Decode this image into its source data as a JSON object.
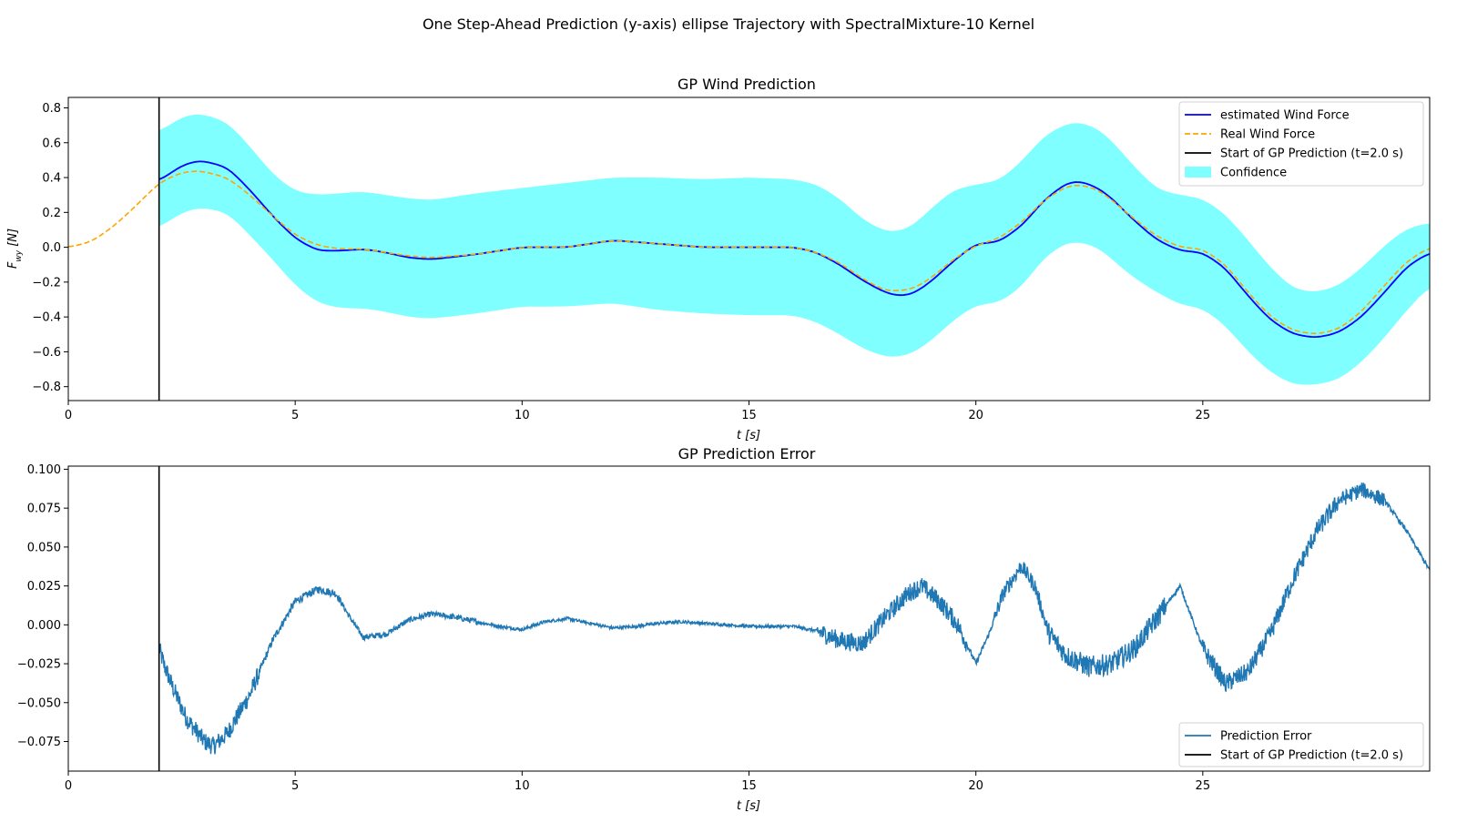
{
  "suptitle": "One Step-Ahead Prediction (y-axis) ellipse Trajectory with SpectralMixture-10 Kernel",
  "colors": {
    "estimated": "#0000ff",
    "real": "#ffa500",
    "start_line": "#000000",
    "confidence": "#7fffff",
    "error": "#1f77b4"
  },
  "chart_data": [
    {
      "type": "line",
      "title": "GP Wind Prediction",
      "xlabel": "t [s]",
      "ylabel": "F_wy [N]",
      "xlim": [
        0,
        30
      ],
      "ylim": [
        -0.88,
        0.86
      ],
      "xticks": [
        0,
        5,
        10,
        15,
        20,
        25
      ],
      "xtick_labels": [
        "0",
        "5",
        "10",
        "15",
        "20",
        "25"
      ],
      "yticks": [
        -0.8,
        -0.6,
        -0.4,
        -0.2,
        0.0,
        0.2,
        0.4,
        0.6,
        0.8
      ],
      "ytick_labels": [
        "−0.8",
        "−0.6",
        "−0.4",
        "−0.2",
        "0.0",
        "0.2",
        "0.4",
        "0.6",
        "0.8"
      ],
      "grid": false,
      "legend_position": "upper right",
      "legend": [
        "estimated Wind Force",
        "Real Wind Force",
        "Start of GP Prediction (t=2.0 s)",
        "Confidence"
      ],
      "vline_x": 2.0,
      "series": [
        {
          "name": "estimated Wind Force",
          "style": "solid",
          "x": [
            2.0,
            2.5,
            2.9,
            3.5,
            4.0,
            4.5,
            5.0,
            5.5,
            6.0,
            6.5,
            7.0,
            7.5,
            8.0,
            9.0,
            10.0,
            11.0,
            12.0,
            13.0,
            14.0,
            15.0,
            16.0,
            16.5,
            17.0,
            17.5,
            18.0,
            18.3,
            18.6,
            19.0,
            19.5,
            20.0,
            20.5,
            21.0,
            21.5,
            22.0,
            22.3,
            22.7,
            23.0,
            23.5,
            24.0,
            24.5,
            25.0,
            25.5,
            26.0,
            26.5,
            27.0,
            27.5,
            28.0,
            28.5,
            29.0,
            29.5,
            30.0
          ],
          "y": [
            0.38,
            0.47,
            0.5,
            0.46,
            0.33,
            0.18,
            0.05,
            -0.02,
            -0.02,
            -0.01,
            -0.03,
            -0.06,
            -0.07,
            -0.04,
            0.0,
            0.0,
            0.04,
            0.02,
            0.0,
            0.0,
            0.0,
            -0.03,
            -0.1,
            -0.19,
            -0.26,
            -0.28,
            -0.27,
            -0.2,
            -0.08,
            0.02,
            0.03,
            0.12,
            0.27,
            0.37,
            0.38,
            0.34,
            0.28,
            0.15,
            0.04,
            -0.02,
            -0.03,
            -0.12,
            -0.28,
            -0.42,
            -0.5,
            -0.52,
            -0.49,
            -0.4,
            -0.26,
            -0.11,
            -0.03
          ]
        },
        {
          "name": "Real Wind Force",
          "style": "dashed",
          "x": [
            0.0,
            0.5,
            1.0,
            1.5,
            2.0,
            2.5,
            2.9,
            3.5,
            4.0,
            4.5,
            5.0,
            5.5,
            6.0,
            6.5,
            7.0,
            7.5,
            8.0,
            9.0,
            10.0,
            11.0,
            12.0,
            13.0,
            14.0,
            15.0,
            16.0,
            16.5,
            17.0,
            17.5,
            18.0,
            18.3,
            18.6,
            19.0,
            19.5,
            20.0,
            20.5,
            21.0,
            21.5,
            22.0,
            22.3,
            22.7,
            23.0,
            23.5,
            24.0,
            24.5,
            25.0,
            25.5,
            26.0,
            26.5,
            27.0,
            27.5,
            28.0,
            28.5,
            29.0,
            29.5,
            30.0
          ],
          "y": [
            0.0,
            0.03,
            0.12,
            0.24,
            0.37,
            0.43,
            0.44,
            0.4,
            0.3,
            0.18,
            0.07,
            0.01,
            -0.01,
            -0.01,
            -0.03,
            -0.05,
            -0.06,
            -0.04,
            0.0,
            0.0,
            0.04,
            0.02,
            0.0,
            0.0,
            0.0,
            -0.03,
            -0.09,
            -0.18,
            -0.25,
            -0.25,
            -0.24,
            -0.18,
            -0.07,
            0.01,
            0.05,
            0.14,
            0.27,
            0.35,
            0.36,
            0.33,
            0.27,
            0.16,
            0.06,
            0.0,
            -0.01,
            -0.1,
            -0.26,
            -0.4,
            -0.48,
            -0.5,
            -0.47,
            -0.37,
            -0.22,
            -0.08,
            0.0
          ]
        }
      ],
      "confidence": {
        "name": "Confidence",
        "x": [
          2.0,
          2.5,
          2.9,
          3.5,
          4.0,
          4.5,
          5.0,
          5.5,
          6.0,
          6.5,
          7.0,
          7.5,
          8.0,
          9.0,
          10.0,
          11.0,
          12.0,
          13.0,
          14.0,
          15.0,
          16.0,
          16.5,
          17.0,
          17.5,
          18.0,
          18.3,
          18.6,
          19.0,
          19.5,
          20.0,
          20.5,
          21.0,
          21.5,
          22.0,
          22.3,
          22.7,
          23.0,
          23.5,
          24.0,
          24.5,
          25.0,
          25.5,
          26.0,
          26.5,
          27.0,
          27.5,
          28.0,
          28.5,
          29.0,
          29.5,
          30.0
        ],
        "upper": [
          0.66,
          0.75,
          0.77,
          0.72,
          0.58,
          0.42,
          0.32,
          0.3,
          0.31,
          0.32,
          0.3,
          0.28,
          0.27,
          0.31,
          0.34,
          0.37,
          0.4,
          0.4,
          0.39,
          0.4,
          0.39,
          0.36,
          0.28,
          0.16,
          0.09,
          0.09,
          0.12,
          0.22,
          0.33,
          0.36,
          0.38,
          0.49,
          0.64,
          0.71,
          0.72,
          0.68,
          0.61,
          0.46,
          0.33,
          0.3,
          0.28,
          0.19,
          0.04,
          -0.12,
          -0.24,
          -0.26,
          -0.22,
          -0.12,
          0.01,
          0.11,
          0.14
        ],
        "lower": [
          0.11,
          0.2,
          0.23,
          0.2,
          0.07,
          -0.07,
          -0.22,
          -0.32,
          -0.35,
          -0.35,
          -0.37,
          -0.4,
          -0.41,
          -0.38,
          -0.34,
          -0.34,
          -0.32,
          -0.36,
          -0.38,
          -0.39,
          -0.39,
          -0.43,
          -0.5,
          -0.58,
          -0.63,
          -0.63,
          -0.61,
          -0.54,
          -0.42,
          -0.33,
          -0.32,
          -0.23,
          -0.06,
          0.03,
          0.03,
          0.0,
          -0.07,
          -0.18,
          -0.26,
          -0.33,
          -0.35,
          -0.45,
          -0.6,
          -0.72,
          -0.79,
          -0.79,
          -0.76,
          -0.66,
          -0.52,
          -0.36,
          -0.22
        ]
      }
    },
    {
      "type": "line",
      "title": "GP Prediction Error",
      "xlabel": "t [s]",
      "ylabel": "",
      "xlim": [
        0,
        30
      ],
      "ylim": [
        -0.094,
        0.102
      ],
      "xticks": [
        0,
        5,
        10,
        15,
        20,
        25
      ],
      "xtick_labels": [
        "0",
        "5",
        "10",
        "15",
        "20",
        "25"
      ],
      "yticks": [
        -0.075,
        -0.05,
        -0.025,
        0.0,
        0.025,
        0.05,
        0.075,
        0.1
      ],
      "ytick_labels": [
        "−0.075",
        "−0.050",
        "−0.025",
        "0.000",
        "0.025",
        "0.050",
        "0.075",
        "0.100"
      ],
      "grid": false,
      "legend_position": "lower right",
      "legend": [
        "Prediction Error",
        "Start of GP Prediction (t=2.0 s)"
      ],
      "vline_x": 2.0,
      "series": [
        {
          "name": "Prediction Error",
          "style": "noisy",
          "x": [
            2.0,
            2.1,
            2.3,
            2.6,
            3.0,
            3.2,
            3.5,
            4.0,
            4.5,
            5.0,
            5.5,
            5.9,
            6.2,
            6.5,
            7.0,
            7.5,
            8.0,
            8.5,
            9.0,
            9.5,
            10.0,
            10.5,
            11.0,
            11.5,
            12.0,
            12.5,
            13.0,
            13.5,
            14.0,
            14.5,
            15.0,
            15.5,
            16.0,
            16.5,
            17.0,
            17.5,
            18.0,
            18.5,
            18.8,
            19.2,
            19.6,
            20.0,
            20.3,
            20.6,
            21.0,
            21.3,
            21.6,
            22.0,
            22.5,
            23.0,
            23.5,
            24.0,
            24.5,
            25.0,
            25.5,
            26.0,
            26.5,
            27.0,
            27.5,
            28.0,
            28.5,
            29.0,
            29.5,
            30.0
          ],
          "y": [
            -0.015,
            -0.025,
            -0.04,
            -0.06,
            -0.075,
            -0.078,
            -0.07,
            -0.045,
            -0.01,
            0.015,
            0.023,
            0.02,
            0.005,
            -0.008,
            -0.006,
            0.003,
            0.007,
            0.005,
            0.002,
            -0.001,
            -0.003,
            0.002,
            0.004,
            0.001,
            -0.002,
            -0.001,
            0.001,
            0.002,
            0.001,
            0.0,
            -0.001,
            -0.001,
            -0.001,
            -0.004,
            -0.01,
            -0.012,
            0.005,
            0.02,
            0.025,
            0.015,
            0.0,
            -0.025,
            -0.005,
            0.02,
            0.038,
            0.025,
            -0.005,
            -0.02,
            -0.027,
            -0.025,
            -0.015,
            0.005,
            0.025,
            -0.015,
            -0.038,
            -0.03,
            -0.005,
            0.03,
            0.06,
            0.08,
            0.087,
            0.08,
            0.06,
            0.035
          ]
        }
      ]
    }
  ]
}
